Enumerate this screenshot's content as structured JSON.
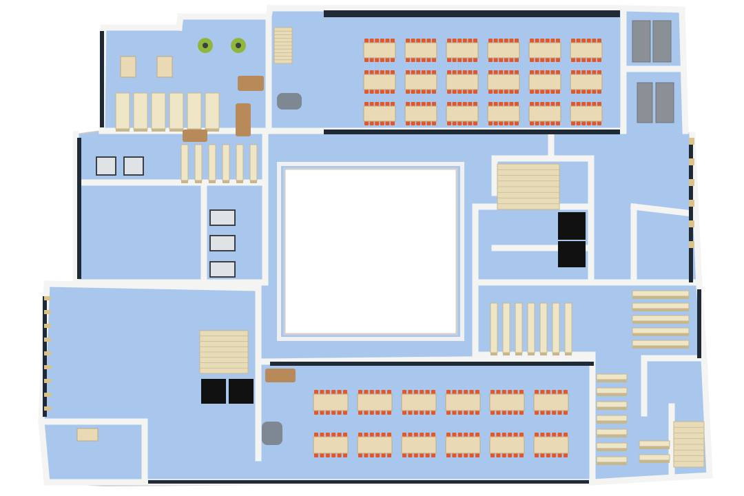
{
  "colors": {
    "background": "#ffffff",
    "floor": "#a9c7ec",
    "floor_shade": "#93b4e0",
    "wall": "#f4f4f2",
    "wall_edge": "#c9c9c9",
    "glass": "#1f2a36",
    "atrium": "#ffffff",
    "table": "#e9d9b5",
    "table_edge": "#bfa97e",
    "chair": "#e2572a",
    "shelf": "#efe6c7",
    "shelf_edge": "#c6b78c",
    "sofa": "#b88a5a",
    "stairs": "#e8dcb8",
    "elevator": "#111111",
    "cabinet": "#8a9096",
    "dark_furniture": "#3b3f44",
    "plant": "#8fb83a",
    "door": "#d8c28e"
  },
  "icons": {
    "tables": "reading-table-icon",
    "chairs": "chair-icon",
    "shelves": "bookshelf-icon",
    "stairs": "staircase-icon",
    "elevators": "elevator-icon",
    "atrium": "atrium-void-icon"
  },
  "zones": {
    "north_reading_room": {
      "table_rows": 3,
      "tables_per_row": 6
    },
    "south_reading_room": {
      "table_rows": 2,
      "tables_per_row": 6
    },
    "west_stacks": {
      "shelf_count": 6
    },
    "center_stacks": {
      "shelf_count": 6
    },
    "east_stacks": {
      "shelf_count": 7
    },
    "south_east_stacks": {
      "shelf_count": 7
    },
    "mid_stacks": {
      "shelf_count": 5
    },
    "staircases": 4,
    "elevators": 4
  }
}
